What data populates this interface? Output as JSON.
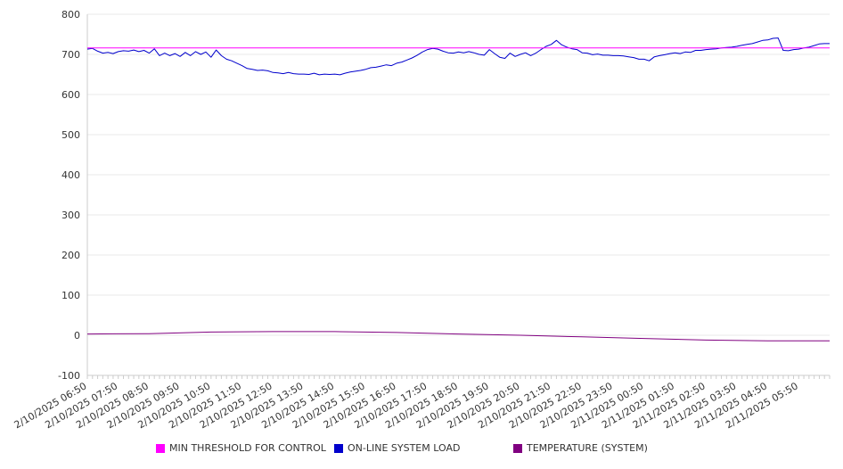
{
  "chart_data": {
    "type": "line",
    "ylim": [
      -100,
      800
    ],
    "y_ticks": [
      -100,
      0,
      100,
      200,
      300,
      400,
      500,
      600,
      700,
      800
    ],
    "x_tick_labels": [
      "2/10/2025 06:50",
      "2/10/2025 07:50",
      "2/10/2025 08:50",
      "2/10/2025 09:50",
      "2/10/2025 10:50",
      "2/10/2025 11:50",
      "2/10/2025 12:50",
      "2/10/2025 13:50",
      "2/10/2025 14:50",
      "2/10/2025 15:50",
      "2/10/2025 16:50",
      "2/10/2025 17:50",
      "2/10/2025 18:50",
      "2/10/2025 19:50",
      "2/10/2025 20:50",
      "2/10/2025 21:50",
      "2/10/2025 22:50",
      "2/10/2025 23:50",
      "2/11/2025 00:50",
      "2/11/2025 01:50",
      "2/11/2025 02:50",
      "2/11/2025 03:50",
      "2/11/2025 04:50",
      "2/11/2025 05:50"
    ],
    "x_end": "2/11/2025 06:50",
    "grid": "horizontal",
    "legend_position": "bottom",
    "series": [
      {
        "name": "MIN THRESHOLD FOR CONTROL",
        "color": "#ff00ff",
        "points": [
          [
            "2/10/2025 06:50",
            716
          ],
          [
            "2/11/2025 06:50",
            716
          ]
        ]
      },
      {
        "name": "ON-LINE SYSTEM LOAD",
        "color": "#0000cc",
        "points": [
          [
            "2/10/2025 06:50",
            713
          ],
          [
            "2/10/2025 07:00",
            715
          ],
          [
            "2/10/2025 07:10",
            708
          ],
          [
            "2/10/2025 07:20",
            703
          ],
          [
            "2/10/2025 07:30",
            705
          ],
          [
            "2/10/2025 07:40",
            702
          ],
          [
            "2/10/2025 07:50",
            707
          ],
          [
            "2/10/2025 08:00",
            709
          ],
          [
            "2/10/2025 08:10",
            708
          ],
          [
            "2/10/2025 08:20",
            711
          ],
          [
            "2/10/2025 08:30",
            707
          ],
          [
            "2/10/2025 08:40",
            710
          ],
          [
            "2/10/2025 08:50",
            703
          ],
          [
            "2/10/2025 09:00",
            714
          ],
          [
            "2/10/2025 09:10",
            697
          ],
          [
            "2/10/2025 09:20",
            703
          ],
          [
            "2/10/2025 09:30",
            697
          ],
          [
            "2/10/2025 09:40",
            702
          ],
          [
            "2/10/2025 09:50",
            695
          ],
          [
            "2/10/2025 10:00",
            705
          ],
          [
            "2/10/2025 10:10",
            697
          ],
          [
            "2/10/2025 10:20",
            707
          ],
          [
            "2/10/2025 10:30",
            700
          ],
          [
            "2/10/2025 10:40",
            706
          ],
          [
            "2/10/2025 10:50",
            693
          ],
          [
            "2/10/2025 11:00",
            711
          ],
          [
            "2/10/2025 11:10",
            697
          ],
          [
            "2/10/2025 11:20",
            688
          ],
          [
            "2/10/2025 11:30",
            684
          ],
          [
            "2/10/2025 11:40",
            678
          ],
          [
            "2/10/2025 11:50",
            672
          ],
          [
            "2/10/2025 12:00",
            665
          ],
          [
            "2/10/2025 12:10",
            663
          ],
          [
            "2/10/2025 12:20",
            660
          ],
          [
            "2/10/2025 12:30",
            661
          ],
          [
            "2/10/2025 12:40",
            659
          ],
          [
            "2/10/2025 12:50",
            655
          ],
          [
            "2/10/2025 13:00",
            654
          ],
          [
            "2/10/2025 13:10",
            652
          ],
          [
            "2/10/2025 13:20",
            655
          ],
          [
            "2/10/2025 13:30",
            652
          ],
          [
            "2/10/2025 13:40",
            651
          ],
          [
            "2/10/2025 13:50",
            651
          ],
          [
            "2/10/2025 14:00",
            650
          ],
          [
            "2/10/2025 14:10",
            653
          ],
          [
            "2/10/2025 14:20",
            649
          ],
          [
            "2/10/2025 14:30",
            651
          ],
          [
            "2/10/2025 14:40",
            650
          ],
          [
            "2/10/2025 14:50",
            651
          ],
          [
            "2/10/2025 15:00",
            649
          ],
          [
            "2/10/2025 15:10",
            653
          ],
          [
            "2/10/2025 15:20",
            656
          ],
          [
            "2/10/2025 15:30",
            658
          ],
          [
            "2/10/2025 15:40",
            660
          ],
          [
            "2/10/2025 15:50",
            663
          ],
          [
            "2/10/2025 16:00",
            667
          ],
          [
            "2/10/2025 16:10",
            668
          ],
          [
            "2/10/2025 16:20",
            671
          ],
          [
            "2/10/2025 16:30",
            674
          ],
          [
            "2/10/2025 16:40",
            672
          ],
          [
            "2/10/2025 16:50",
            678
          ],
          [
            "2/10/2025 17:00",
            681
          ],
          [
            "2/10/2025 17:10",
            686
          ],
          [
            "2/10/2025 17:20",
            691
          ],
          [
            "2/10/2025 17:30",
            698
          ],
          [
            "2/10/2025 17:40",
            706
          ],
          [
            "2/10/2025 17:50",
            712
          ],
          [
            "2/10/2025 18:00",
            715
          ],
          [
            "2/10/2025 18:10",
            713
          ],
          [
            "2/10/2025 18:20",
            708
          ],
          [
            "2/10/2025 18:30",
            704
          ],
          [
            "2/10/2025 18:40",
            703
          ],
          [
            "2/10/2025 18:50",
            706
          ],
          [
            "2/10/2025 19:00",
            704
          ],
          [
            "2/10/2025 19:10",
            707
          ],
          [
            "2/10/2025 19:20",
            704
          ],
          [
            "2/10/2025 19:30",
            700
          ],
          [
            "2/10/2025 19:40",
            698
          ],
          [
            "2/10/2025 19:50",
            712
          ],
          [
            "2/10/2025 20:00",
            702
          ],
          [
            "2/10/2025 20:10",
            693
          ],
          [
            "2/10/2025 20:20",
            690
          ],
          [
            "2/10/2025 20:30",
            703
          ],
          [
            "2/10/2025 20:40",
            695
          ],
          [
            "2/10/2025 20:50",
            700
          ],
          [
            "2/10/2025 21:00",
            704
          ],
          [
            "2/10/2025 21:10",
            697
          ],
          [
            "2/10/2025 21:20",
            703
          ],
          [
            "2/10/2025 21:30",
            712
          ],
          [
            "2/10/2025 21:40",
            720
          ],
          [
            "2/10/2025 21:50",
            725
          ],
          [
            "2/10/2025 22:00",
            735
          ],
          [
            "2/10/2025 22:10",
            724
          ],
          [
            "2/10/2025 22:20",
            718
          ],
          [
            "2/10/2025 22:30",
            714
          ],
          [
            "2/10/2025 22:40",
            712
          ],
          [
            "2/10/2025 22:50",
            704
          ],
          [
            "2/10/2025 23:00",
            703
          ],
          [
            "2/10/2025 23:10",
            699
          ],
          [
            "2/10/2025 23:20",
            701
          ],
          [
            "2/10/2025 23:30",
            698
          ],
          [
            "2/10/2025 23:40",
            698
          ],
          [
            "2/10/2025 23:50",
            697
          ],
          [
            "2/11/2025 00:00",
            697
          ],
          [
            "2/11/2025 00:10",
            696
          ],
          [
            "2/11/2025 00:20",
            694
          ],
          [
            "2/11/2025 00:30",
            692
          ],
          [
            "2/11/2025 00:40",
            688
          ],
          [
            "2/11/2025 00:50",
            688
          ],
          [
            "2/11/2025 01:00",
            684
          ],
          [
            "2/11/2025 01:10",
            694
          ],
          [
            "2/11/2025 01:20",
            697
          ],
          [
            "2/11/2025 01:30",
            699
          ],
          [
            "2/11/2025 01:40",
            702
          ],
          [
            "2/11/2025 01:50",
            704
          ],
          [
            "2/11/2025 02:00",
            702
          ],
          [
            "2/11/2025 02:10",
            706
          ],
          [
            "2/11/2025 02:20",
            705
          ],
          [
            "2/11/2025 02:30",
            710
          ],
          [
            "2/11/2025 02:40",
            710
          ],
          [
            "2/11/2025 02:50",
            712
          ],
          [
            "2/11/2025 03:00",
            713
          ],
          [
            "2/11/2025 03:10",
            714
          ],
          [
            "2/11/2025 03:20",
            716
          ],
          [
            "2/11/2025 03:30",
            717
          ],
          [
            "2/11/2025 03:40",
            718
          ],
          [
            "2/11/2025 03:50",
            720
          ],
          [
            "2/11/2025 04:00",
            723
          ],
          [
            "2/11/2025 04:10",
            725
          ],
          [
            "2/11/2025 04:20",
            727
          ],
          [
            "2/11/2025 04:30",
            731
          ],
          [
            "2/11/2025 04:40",
            735
          ],
          [
            "2/11/2025 04:50",
            736
          ],
          [
            "2/11/2025 05:00",
            740
          ],
          [
            "2/11/2025 05:10",
            741
          ],
          [
            "2/11/2025 05:20",
            710
          ],
          [
            "2/11/2025 05:30",
            709
          ],
          [
            "2/11/2025 05:40",
            712
          ],
          [
            "2/11/2025 05:50",
            713
          ],
          [
            "2/11/2025 06:00",
            716
          ],
          [
            "2/11/2025 06:10",
            718
          ],
          [
            "2/11/2025 06:20",
            722
          ],
          [
            "2/11/2025 06:30",
            726
          ],
          [
            "2/11/2025 06:40",
            727
          ],
          [
            "2/11/2025 06:50",
            727
          ]
        ]
      },
      {
        "name": "TEMPERATURE (SYSTEM)",
        "color": "#800080",
        "points": [
          [
            "2/10/2025 06:50",
            3
          ],
          [
            "2/10/2025 08:50",
            4
          ],
          [
            "2/10/2025 10:50",
            8
          ],
          [
            "2/10/2025 12:50",
            9
          ],
          [
            "2/10/2025 14:50",
            9
          ],
          [
            "2/10/2025 16:50",
            7
          ],
          [
            "2/10/2025 18:50",
            3
          ],
          [
            "2/10/2025 20:50",
            0
          ],
          [
            "2/10/2025 22:50",
            -4
          ],
          [
            "2/11/2025 00:50",
            -8
          ],
          [
            "2/11/2025 02:50",
            -12
          ],
          [
            "2/11/2025 04:50",
            -14
          ],
          [
            "2/11/2025 06:50",
            -14
          ]
        ]
      }
    ]
  }
}
